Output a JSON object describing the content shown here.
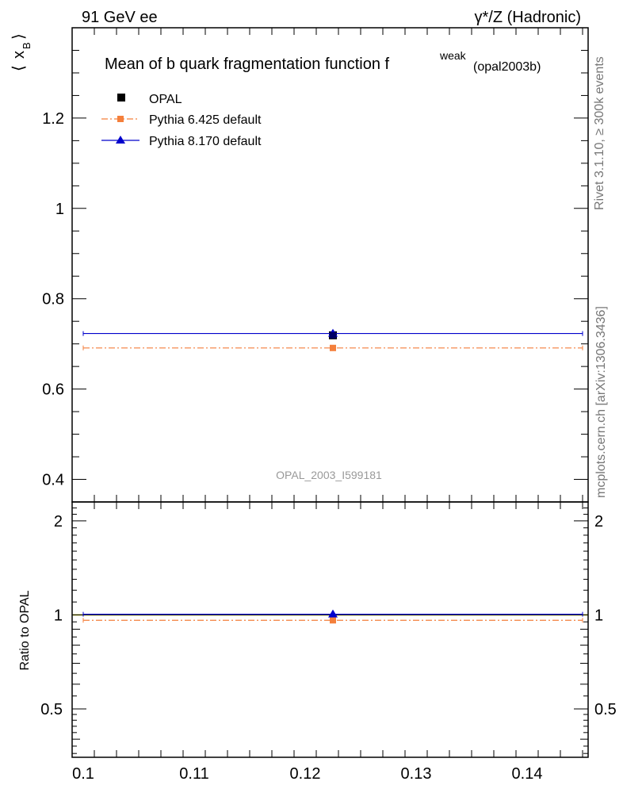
{
  "header": {
    "left": "91 GeV ee",
    "right_prefix": "γ",
    "right_suffix": "*/Z (Hadronic)"
  },
  "side": {
    "rivet": "Rivet 3.1.10, ≥ 300k events",
    "mcplots": "mcplots.cern.ch [arXiv:1306.3436]"
  },
  "watermark": "OPAL_2003_I599181",
  "chart_data": [
    {
      "type": "scatter",
      "role": "main",
      "title_main": "Mean of b quark fragmentation function f",
      "title_sup": "weak",
      "title_sub": "(opal2003b)",
      "ylabel_main": "x",
      "ylabel_sub": "B",
      "xlim": [
        0.099,
        0.1455
      ],
      "ylim": [
        0.35,
        1.4
      ],
      "y_ticks": [
        0.4,
        0.6,
        0.8,
        1,
        1.2
      ],
      "y_tick_labels": [
        "0.4",
        "0.6",
        "0.8",
        "1",
        "1.2"
      ],
      "series": [
        {
          "name": "OPAL",
          "color": "#000000",
          "marker": "square",
          "line": "none",
          "x": 0.1225,
          "y": 0.719,
          "xerr": [
            0.1225,
            0.1225
          ]
        },
        {
          "name": "Pythia 6.425 default",
          "color": "#f47f3b",
          "marker": "square",
          "line": "dashdot",
          "x": 0.1225,
          "y": 0.691,
          "xerr": [
            0.1,
            0.145
          ]
        },
        {
          "name": "Pythia 8.170 default",
          "color": "#0000cc",
          "marker": "triangle",
          "line": "solid",
          "x": 0.1225,
          "y": 0.723,
          "xerr": [
            0.1,
            0.145
          ]
        }
      ]
    },
    {
      "type": "scatter",
      "role": "ratio",
      "ylabel": "Ratio to OPAL",
      "xlim": [
        0.099,
        0.1455
      ],
      "ylim": [
        0.35,
        2.3
      ],
      "x_ticks": [
        0.1,
        0.11,
        0.12,
        0.13,
        0.14
      ],
      "x_tick_labels": [
        "0.1",
        "0.11",
        "0.12",
        "0.13",
        "0.14"
      ],
      "y_ticks": [
        0.5,
        1,
        2
      ],
      "y_tick_labels": [
        "0.5",
        "1",
        "2"
      ],
      "reference": {
        "y": 1.0,
        "band_color": "#ffff66"
      },
      "series": [
        {
          "name": "Pythia 6.425 default",
          "color": "#f47f3b",
          "marker": "square",
          "line": "dashdot",
          "x": 0.1225,
          "y": 0.961,
          "xerr": [
            0.1,
            0.145
          ]
        },
        {
          "name": "Pythia 8.170 default",
          "color": "#0000cc",
          "marker": "triangle",
          "line": "solid",
          "x": 0.1225,
          "y": 1.005,
          "xerr": [
            0.1,
            0.145
          ]
        }
      ]
    }
  ]
}
